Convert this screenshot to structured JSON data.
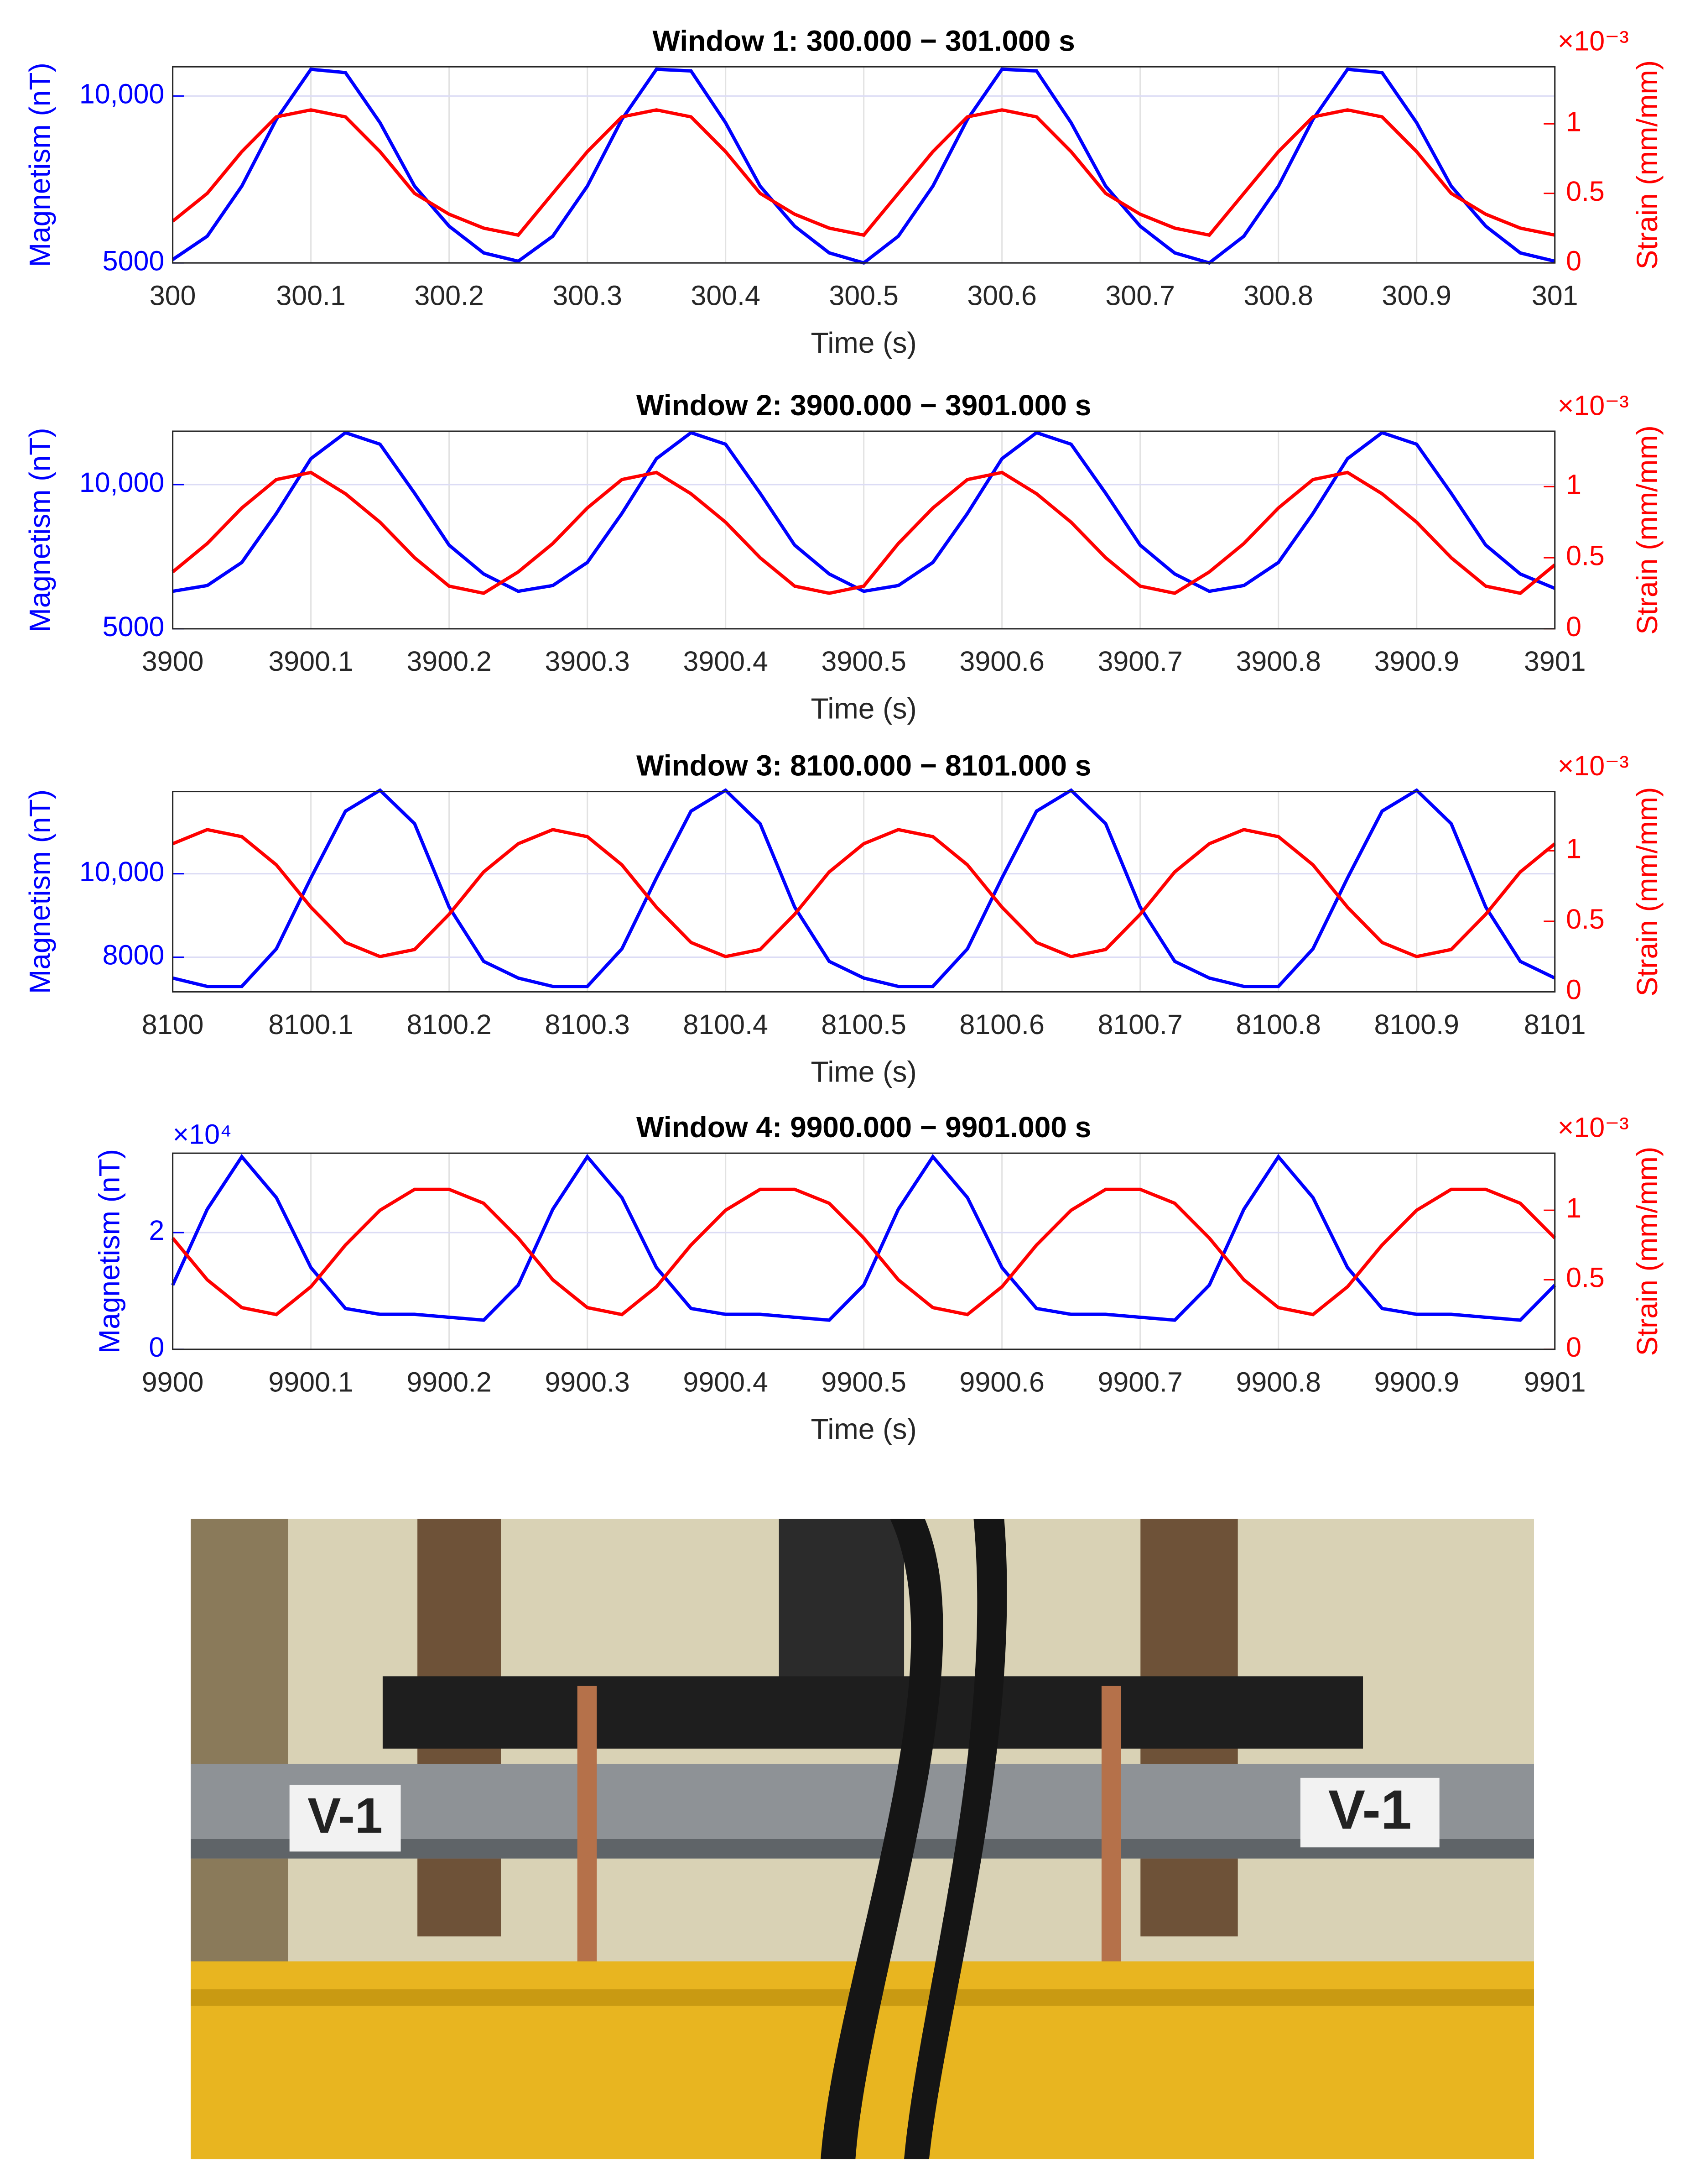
{
  "chart_data": [
    {
      "type": "line",
      "title": "Window 1: 300.000 − 301.000 s",
      "x_label": "Time (s)",
      "y_label": "Magnetism (nT)",
      "y2_label": "Strain (mm/mm)",
      "y2_multiplier": "×10⁻³",
      "x": [
        300,
        300.025,
        300.05,
        300.075,
        300.1,
        300.125,
        300.15,
        300.175,
        300.2,
        300.225,
        300.25,
        300.275,
        300.3,
        300.325,
        300.35,
        300.375,
        300.4,
        300.425,
        300.45,
        300.475,
        300.5,
        300.525,
        300.55,
        300.575,
        300.6,
        300.625,
        300.65,
        300.675,
        300.7,
        300.725,
        300.75,
        300.775,
        300.8,
        300.825,
        300.85,
        300.875,
        300.9,
        300.925,
        300.95,
        300.975,
        301
      ],
      "xlim": [
        300,
        301
      ],
      "xticks": [
        300,
        300.1,
        300.2,
        300.3,
        300.4,
        300.5,
        300.6,
        300.7,
        300.8,
        300.9,
        301
      ],
      "ylim": [
        5000,
        10875
      ],
      "yticks": [
        5000,
        {
          "value": 10000,
          "label": "10,000"
        }
      ],
      "y2lim": [
        0,
        1.41
      ],
      "y2ticks": [
        0,
        0.5,
        1
      ],
      "grid": true,
      "series": [
        {
          "color": "#0000ff",
          "axis": "y",
          "values": [
            5100,
            5800,
            7300,
            9300,
            10800,
            10700,
            9200,
            7300,
            6100,
            5300,
            5050,
            5800,
            7300,
            9300,
            10800,
            10750,
            9200,
            7300,
            6100,
            5300,
            5000,
            5800,
            7300,
            9300,
            10800,
            10750,
            9200,
            7300,
            6100,
            5300,
            5000,
            5800,
            7300,
            9300,
            10800,
            10700,
            9200,
            7300,
            6100,
            5300,
            5050
          ]
        },
        {
          "color": "#ff0000",
          "axis": "y2",
          "values": [
            0.3,
            0.5,
            0.8,
            1.05,
            1.1,
            1.05,
            0.8,
            0.5,
            0.35,
            0.25,
            0.2,
            0.5,
            0.8,
            1.05,
            1.1,
            1.05,
            0.8,
            0.5,
            0.35,
            0.25,
            0.2,
            0.5,
            0.8,
            1.05,
            1.1,
            1.05,
            0.8,
            0.5,
            0.35,
            0.25,
            0.2,
            0.5,
            0.8,
            1.05,
            1.1,
            1.05,
            0.8,
            0.5,
            0.35,
            0.25,
            0.2
          ]
        }
      ]
    },
    {
      "type": "line",
      "title": "Window 2: 3900.000 − 3901.000 s",
      "x_label": "Time (s)",
      "y_label": "Magnetism (nT)",
      "y2_label": "Strain (mm/mm)",
      "y2_multiplier": "×10⁻³",
      "x": [
        3900,
        3900.025,
        3900.05,
        3900.075,
        3900.1,
        3900.125,
        3900.15,
        3900.175,
        3900.2,
        3900.225,
        3900.25,
        3900.275,
        3900.3,
        3900.325,
        3900.35,
        3900.375,
        3900.4,
        3900.425,
        3900.45,
        3900.475,
        3900.5,
        3900.525,
        3900.55,
        3900.575,
        3900.6,
        3900.625,
        3900.65,
        3900.675,
        3900.7,
        3900.725,
        3900.75,
        3900.775,
        3900.8,
        3900.825,
        3900.85,
        3900.875,
        3900.9,
        3900.925,
        3900.95,
        3900.975,
        3901
      ],
      "xlim": [
        3900,
        3901
      ],
      "xticks": [
        3900,
        3900.1,
        3900.2,
        3900.3,
        3900.4,
        3900.5,
        3900.6,
        3900.7,
        3900.8,
        3900.9,
        3901
      ],
      "ylim": [
        5000,
        11850
      ],
      "yticks": [
        5000,
        {
          "value": 10000,
          "label": "10,000"
        }
      ],
      "y2lim": [
        0,
        1.39
      ],
      "y2ticks": [
        0,
        0.5,
        1
      ],
      "grid": true,
      "series": [
        {
          "color": "#0000ff",
          "axis": "y",
          "values": [
            6300,
            6500,
            7300,
            9000,
            10900,
            11800,
            11400,
            9700,
            7900,
            6900,
            6300,
            6500,
            7300,
            9000,
            10900,
            11800,
            11400,
            9700,
            7900,
            6900,
            6300,
            6500,
            7300,
            9000,
            10900,
            11800,
            11400,
            9700,
            7900,
            6900,
            6300,
            6500,
            7300,
            9000,
            10900,
            11800,
            11400,
            9700,
            7900,
            6900,
            6400
          ]
        },
        {
          "color": "#ff0000",
          "axis": "y2",
          "values": [
            0.4,
            0.6,
            0.85,
            1.05,
            1.1,
            0.95,
            0.75,
            0.5,
            0.3,
            0.25,
            0.4,
            0.6,
            0.85,
            1.05,
            1.1,
            0.95,
            0.75,
            0.5,
            0.3,
            0.25,
            0.3,
            0.6,
            0.85,
            1.05,
            1.1,
            0.95,
            0.75,
            0.5,
            0.3,
            0.25,
            0.4,
            0.6,
            0.85,
            1.05,
            1.1,
            0.95,
            0.75,
            0.5,
            0.3,
            0.25,
            0.45
          ]
        }
      ]
    },
    {
      "type": "line",
      "title": "Window 3: 8100.000 − 8101.000 s",
      "x_label": "Time (s)",
      "y_label": "Magnetism (nT)",
      "y2_label": "Strain (mm/mm)",
      "y2_multiplier": "×10⁻³",
      "x": [
        8100,
        8100.025,
        8100.05,
        8100.075,
        8100.1,
        8100.125,
        8100.15,
        8100.175,
        8100.2,
        8100.225,
        8100.25,
        8100.275,
        8100.3,
        8100.325,
        8100.35,
        8100.375,
        8100.4,
        8100.425,
        8100.45,
        8100.475,
        8100.5,
        8100.525,
        8100.55,
        8100.575,
        8100.6,
        8100.625,
        8100.65,
        8100.675,
        8100.7,
        8100.725,
        8100.75,
        8100.775,
        8100.8,
        8100.825,
        8100.85,
        8100.875,
        8100.9,
        8100.925,
        8100.95,
        8100.975,
        8101
      ],
      "xlim": [
        8100,
        8101
      ],
      "xticks": [
        8100,
        8100.1,
        8100.2,
        8100.3,
        8100.4,
        8100.5,
        8100.6,
        8100.7,
        8100.8,
        8100.9,
        8101
      ],
      "ylim": [
        7170,
        11970
      ],
      "yticks": [
        8000,
        {
          "value": 10000,
          "label": "10,000"
        }
      ],
      "y2lim": [
        0,
        1.42
      ],
      "y2ticks": [
        0,
        0.5,
        1
      ],
      "grid": true,
      "series": [
        {
          "color": "#0000ff",
          "axis": "y",
          "values": [
            7500,
            7300,
            7300,
            8200,
            9900,
            11500,
            12000,
            11200,
            9200,
            7900,
            7500,
            7300,
            7300,
            8200,
            9900,
            11500,
            12000,
            11200,
            9200,
            7900,
            7500,
            7300,
            7300,
            8200,
            9900,
            11500,
            12000,
            11200,
            9200,
            7900,
            7500,
            7300,
            7300,
            8200,
            9900,
            11500,
            12000,
            11200,
            9200,
            7900,
            7500
          ]
        },
        {
          "color": "#ff0000",
          "axis": "y2",
          "values": [
            1.05,
            1.15,
            1.1,
            0.9,
            0.6,
            0.35,
            0.25,
            0.3,
            0.55,
            0.85,
            1.05,
            1.15,
            1.1,
            0.9,
            0.6,
            0.35,
            0.25,
            0.3,
            0.55,
            0.85,
            1.05,
            1.15,
            1.1,
            0.9,
            0.6,
            0.35,
            0.25,
            0.3,
            0.55,
            0.85,
            1.05,
            1.15,
            1.1,
            0.9,
            0.6,
            0.35,
            0.25,
            0.3,
            0.55,
            0.85,
            1.05
          ]
        }
      ]
    },
    {
      "type": "line",
      "title": "Window 4: 9900.000 − 9901.000 s",
      "x_label": "Time (s)",
      "y_label": "Magnetism (nT)",
      "y_multiplier": "×10⁴",
      "y2_label": "Strain (mm/mm)",
      "y2_multiplier": "×10⁻³",
      "x": [
        9900,
        9900.025,
        9900.05,
        9900.075,
        9900.1,
        9900.125,
        9900.15,
        9900.175,
        9900.2,
        9900.225,
        9900.25,
        9900.275,
        9900.3,
        9900.325,
        9900.35,
        9900.375,
        9900.4,
        9900.425,
        9900.45,
        9900.475,
        9900.5,
        9900.525,
        9900.55,
        9900.575,
        9900.6,
        9900.625,
        9900.65,
        9900.675,
        9900.7,
        9900.725,
        9900.75,
        9900.775,
        9900.8,
        9900.825,
        9900.85,
        9900.875,
        9900.9,
        9900.925,
        9900.95,
        9900.975,
        9901
      ],
      "xlim": [
        9900,
        9901
      ],
      "xticks": [
        9900,
        9900.1,
        9900.2,
        9900.3,
        9900.4,
        9900.5,
        9900.6,
        9900.7,
        9900.8,
        9900.9,
        9901
      ],
      "ylim": [
        0,
        3.36
      ],
      "yticks": [
        0,
        2
      ],
      "y2lim": [
        0,
        1.41
      ],
      "y2ticks": [
        0,
        0.5,
        1
      ],
      "grid": true,
      "series": [
        {
          "color": "#0000ff",
          "axis": "y",
          "values": [
            1.1,
            2.4,
            3.3,
            2.6,
            1.4,
            0.7,
            0.6,
            0.6,
            0.55,
            0.5,
            1.1,
            2.4,
            3.3,
            2.6,
            1.4,
            0.7,
            0.6,
            0.6,
            0.55,
            0.5,
            1.1,
            2.4,
            3.3,
            2.6,
            1.4,
            0.7,
            0.6,
            0.6,
            0.55,
            0.5,
            1.1,
            2.4,
            3.3,
            2.6,
            1.4,
            0.7,
            0.6,
            0.6,
            0.55,
            0.5,
            1.1
          ]
        },
        {
          "color": "#ff0000",
          "axis": "y2",
          "values": [
            0.8,
            0.5,
            0.3,
            0.25,
            0.45,
            0.75,
            1.0,
            1.15,
            1.15,
            1.05,
            0.8,
            0.5,
            0.3,
            0.25,
            0.45,
            0.75,
            1.0,
            1.15,
            1.15,
            1.05,
            0.8,
            0.5,
            0.3,
            0.25,
            0.45,
            0.75,
            1.0,
            1.15,
            1.15,
            1.05,
            0.8,
            0.5,
            0.3,
            0.25,
            0.45,
            0.75,
            1.0,
            1.15,
            1.15,
            1.05,
            0.8
          ]
        }
      ]
    }
  ],
  "photo": {
    "labels": [
      "V-1",
      "V-1"
    ]
  }
}
